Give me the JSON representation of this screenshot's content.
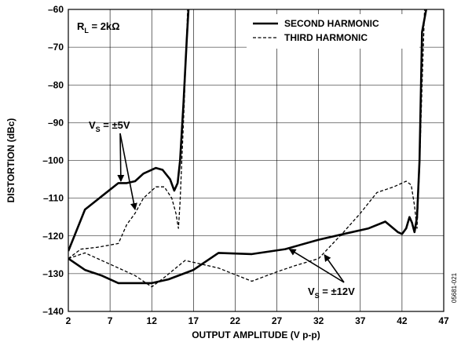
{
  "chart_data": {
    "type": "line",
    "xlabel": "OUTPUT AMPLITUDE (V p-p)",
    "ylabel": "DISTORTION (dBc)",
    "xlim": [
      2,
      47
    ],
    "ylim": [
      -140,
      -60
    ],
    "xticks": [
      2,
      7,
      12,
      17,
      22,
      27,
      32,
      37,
      42,
      47
    ],
    "yticks": [
      -60,
      -70,
      -80,
      -90,
      -100,
      -110,
      -120,
      -130,
      -140
    ],
    "grid": true,
    "legend_position": "top-right",
    "legend": [
      {
        "name": "SECOND HARMONIC",
        "style": "solid"
      },
      {
        "name": "THIRD HARMONIC",
        "style": "dashed"
      }
    ],
    "annotations": {
      "load": {
        "main": "R",
        "sub": "L",
        "rest": " = 2kΩ"
      },
      "vs5": {
        "main": "V",
        "sub": "S",
        "rest": " = ±5V"
      },
      "vs12": {
        "main": "V",
        "sub": "S",
        "rest": " = ±12V"
      },
      "figure_id": "05681-021"
    },
    "series": [
      {
        "name": "SECOND HARMONIC",
        "condition": "±5V",
        "style": "solid",
        "points": [
          [
            2,
            -124
          ],
          [
            4,
            -113
          ],
          [
            6,
            -109.5
          ],
          [
            8,
            -106
          ],
          [
            9,
            -106
          ],
          [
            10,
            -105.5
          ],
          [
            11,
            -103.5
          ],
          [
            12.5,
            -102
          ],
          [
            13.3,
            -102.5
          ],
          [
            14.2,
            -105
          ],
          [
            14.7,
            -108
          ],
          [
            15.1,
            -106
          ],
          [
            15.4,
            -100
          ],
          [
            15.8,
            -85
          ],
          [
            16.2,
            -68
          ],
          [
            16.4,
            -60
          ]
        ]
      },
      {
        "name": "THIRD HARMONIC",
        "condition": "±5V",
        "style": "dashed",
        "points": [
          [
            2,
            -126
          ],
          [
            3.5,
            -123.5
          ],
          [
            5.5,
            -123
          ],
          [
            8,
            -122
          ],
          [
            9,
            -117
          ],
          [
            10,
            -114
          ],
          [
            11,
            -110
          ],
          [
            12.5,
            -107
          ],
          [
            13.5,
            -107
          ],
          [
            14.4,
            -110
          ],
          [
            14.9,
            -114
          ],
          [
            15.2,
            -118
          ],
          [
            15.4,
            -111
          ],
          [
            15.6,
            -100
          ],
          [
            15.9,
            -85
          ],
          [
            16.3,
            -60
          ]
        ]
      },
      {
        "name": "SECOND HARMONIC",
        "condition": "±12V",
        "style": "solid",
        "points": [
          [
            2,
            -126
          ],
          [
            4,
            -129
          ],
          [
            6,
            -130.5
          ],
          [
            8,
            -132.5
          ],
          [
            10,
            -132.5
          ],
          [
            12,
            -132.5
          ],
          [
            14,
            -131.5
          ],
          [
            17,
            -129
          ],
          [
            20,
            -124.5
          ],
          [
            24,
            -124.8
          ],
          [
            28,
            -123.5
          ],
          [
            32,
            -121
          ],
          [
            35,
            -119.5
          ],
          [
            38,
            -118
          ],
          [
            40,
            -116.2
          ],
          [
            41.5,
            -119
          ],
          [
            42,
            -119.5
          ],
          [
            42.5,
            -118
          ],
          [
            42.9,
            -115
          ],
          [
            43.2,
            -116.5
          ],
          [
            43.5,
            -119
          ],
          [
            43.8,
            -115
          ],
          [
            44.1,
            -100
          ],
          [
            44.4,
            -66
          ],
          [
            44.9,
            -60
          ]
        ]
      },
      {
        "name": "THIRD HARMONIC",
        "condition": "±12V",
        "style": "dashed",
        "points": [
          [
            2,
            -126
          ],
          [
            4,
            -124.5
          ],
          [
            7,
            -127.5
          ],
          [
            10,
            -130.5
          ],
          [
            12,
            -133.5
          ],
          [
            13.5,
            -131
          ],
          [
            16,
            -126.5
          ],
          [
            20,
            -128.5
          ],
          [
            24,
            -132
          ],
          [
            27,
            -129.5
          ],
          [
            29,
            -128
          ],
          [
            32,
            -126
          ],
          [
            35,
            -119
          ],
          [
            37,
            -114
          ],
          [
            39,
            -108.5
          ],
          [
            41,
            -107
          ],
          [
            42.5,
            -105.5
          ],
          [
            43.1,
            -106.5
          ],
          [
            43.5,
            -112
          ],
          [
            43.8,
            -118
          ],
          [
            44.1,
            -102
          ],
          [
            44.4,
            -80
          ],
          [
            44.7,
            -60
          ]
        ]
      }
    ]
  }
}
